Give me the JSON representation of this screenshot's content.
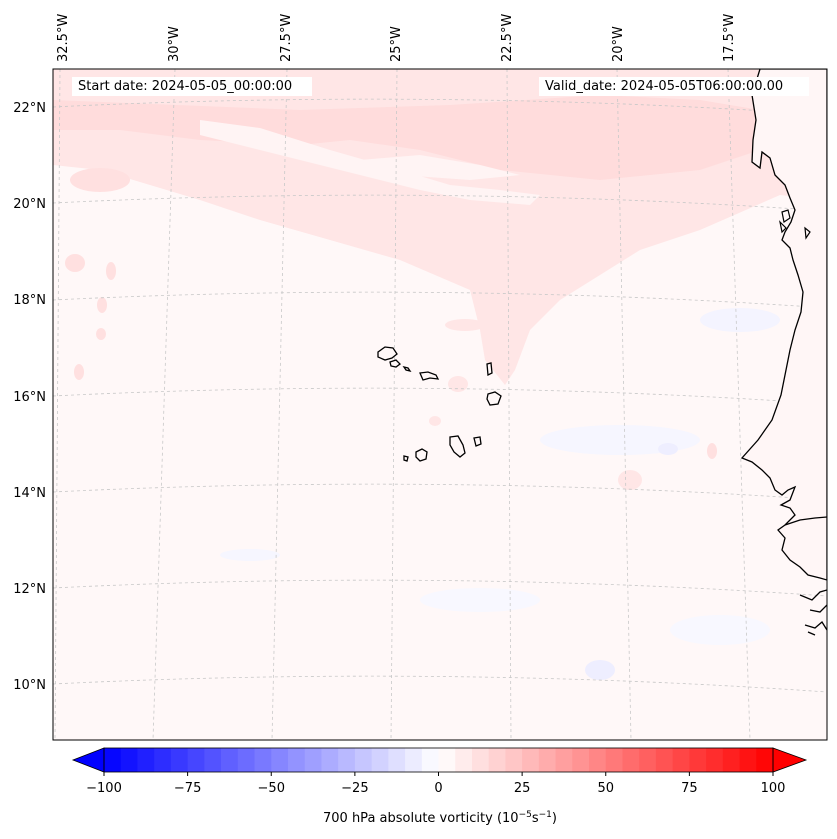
{
  "header": {
    "start_date": "Start date: 2024-05-05_00:00:00",
    "valid_date": "Valid_date: 2024-05-05T06:00:00.00"
  },
  "axes": {
    "longitude_labels": [
      "32.5°W",
      "30°W",
      "27.5°W",
      "25°W",
      "22.5°W",
      "20°W",
      "17.5°W"
    ],
    "latitude_labels": [
      "22°N",
      "20°N",
      "18°N",
      "16°N",
      "14°N",
      "12°N",
      "10°N"
    ]
  },
  "colorbar": {
    "label": "700 hPa absolute vorticity (10",
    "label_exp1": "−5",
    "label_mid": "s",
    "label_exp2": "−1",
    "label_end": ")",
    "ticks": [
      "−100",
      "−75",
      "−50",
      "−25",
      "0",
      "25",
      "50",
      "75",
      "100"
    ],
    "tick_values": [
      -100,
      -75,
      -50,
      -25,
      0,
      25,
      50,
      75,
      100
    ],
    "min": -100,
    "max": 100,
    "levels": 40,
    "colors": {
      "negative": "#0000ff",
      "zero": "#ffffff",
      "positive": "#ff0000"
    }
  },
  "map": {
    "background_color": "#fff8f8",
    "coastline_color": "#000000",
    "gridline_color": "#c8c8c8"
  }
}
